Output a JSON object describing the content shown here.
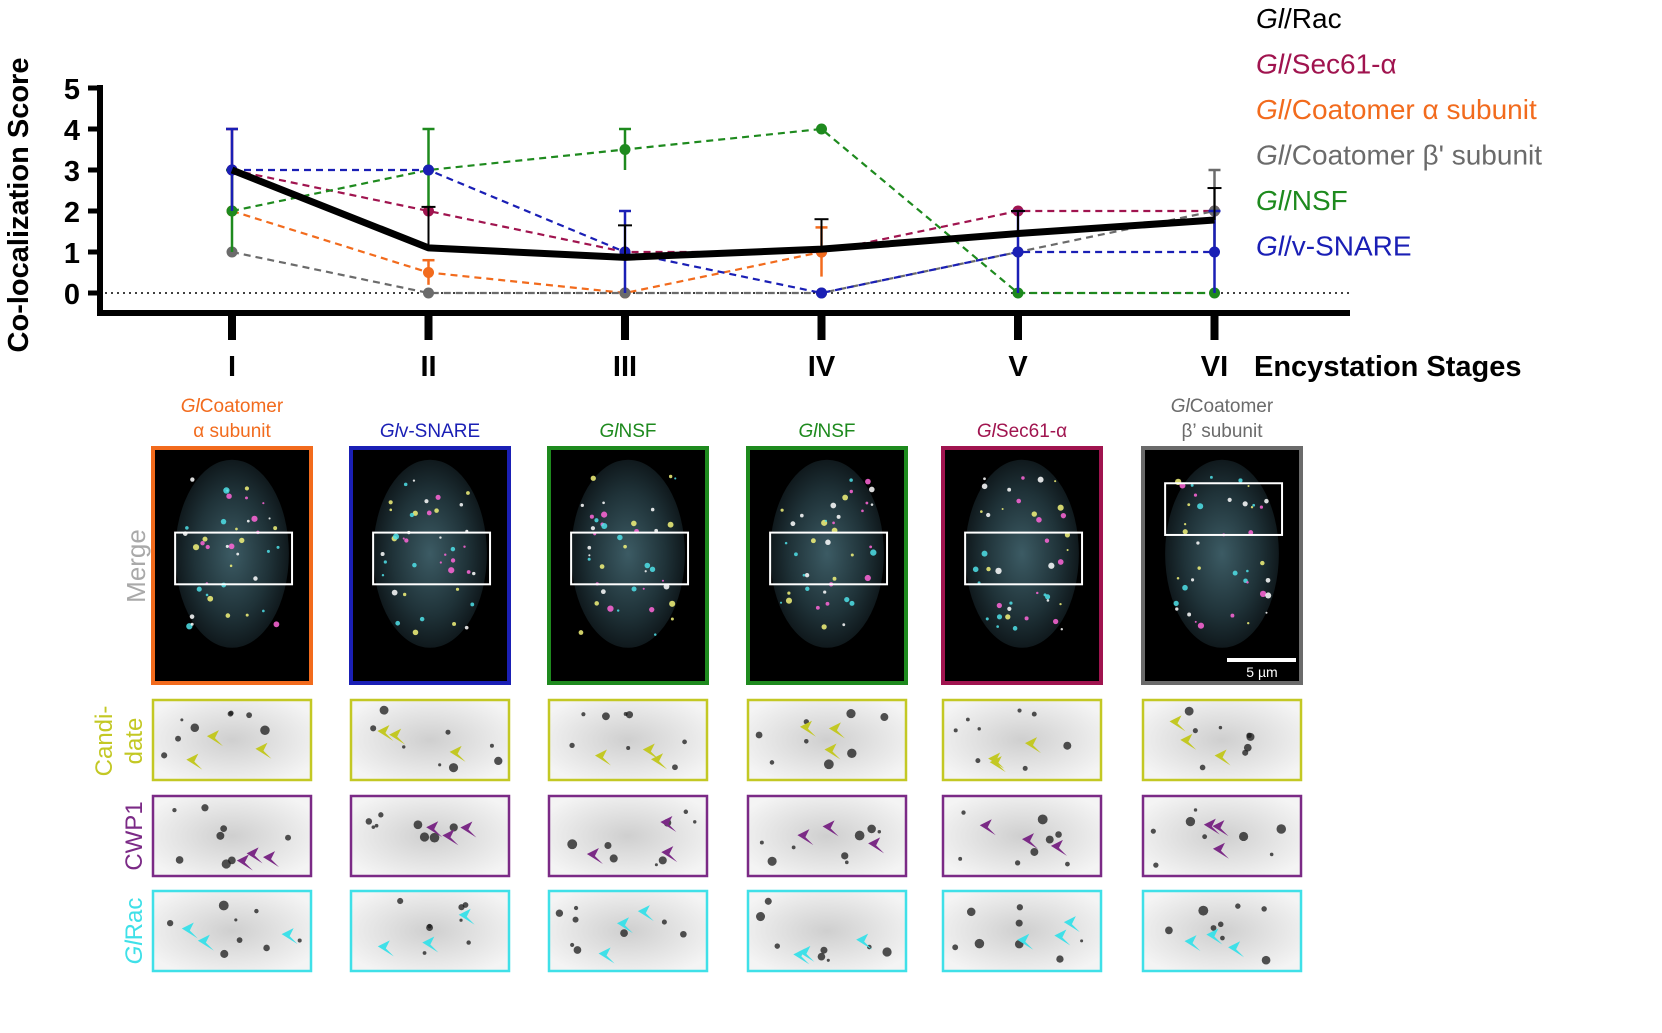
{
  "chart_data": {
    "type": "line",
    "title": "",
    "ylabel": "Co-localization Score",
    "xlabel": "Encystation Stages",
    "categories": [
      "I",
      "II",
      "III",
      "IV",
      "V",
      "VI"
    ],
    "yticks": [
      0,
      1,
      2,
      3,
      4,
      5
    ],
    "ylim": [
      0,
      5
    ],
    "legend_placement": "top-right",
    "reference_line": 0,
    "mean": {
      "values": [
        3.0,
        1.1,
        0.87,
        1.07,
        1.45,
        1.78
      ],
      "err": [
        null,
        1.0,
        0.78,
        0.73,
        0.55,
        0.78
      ],
      "color": "#000000"
    },
    "series": [
      {
        "name": "Rac",
        "prefix": "Gl",
        "color": "#000000",
        "values": [
          3,
          1.1,
          0.87,
          1.07,
          1.45,
          1.78
        ],
        "err": [
          0,
          0,
          0,
          0,
          0,
          0
        ]
      },
      {
        "name": "Sec61-α",
        "prefix": "Gl",
        "color": "#a0144f",
        "values": [
          3,
          2,
          1,
          1,
          2,
          2
        ],
        "err": [
          1,
          0,
          0,
          0,
          0,
          0
        ]
      },
      {
        "name": "Coatomer α subunit",
        "prefix": "Gl",
        "color": "#f26b1d",
        "values": [
          2,
          0.5,
          0,
          1,
          null,
          null
        ],
        "err": [
          0,
          0.3,
          0,
          0.6,
          0,
          0
        ]
      },
      {
        "name": "Coatomer β' subunit",
        "prefix": "Gl",
        "color": "#6b6b6b",
        "values": [
          1,
          0,
          0,
          0,
          1,
          2
        ],
        "err": [
          0,
          0,
          0,
          0,
          0,
          1
        ]
      },
      {
        "name": "NSF",
        "prefix": "Gl",
        "color": "#1e8a1e",
        "values": [
          2,
          3,
          3.5,
          4,
          0,
          0
        ],
        "err": [
          1,
          1,
          0.5,
          0,
          0,
          0
        ]
      },
      {
        "name": "v-SNARE",
        "prefix": "Gl",
        "color": "#1a1fb5",
        "values": [
          3,
          3,
          1,
          0,
          1,
          1
        ],
        "err": [
          1,
          0,
          1,
          0,
          1,
          1
        ]
      }
    ]
  },
  "panels": {
    "columns": [
      {
        "label_prefix": "Gl",
        "label_rest": "Coatomer",
        "label_line2": "α subunit",
        "color": "#f26b1d"
      },
      {
        "label_prefix": "Gl",
        "label_rest": "v-SNARE",
        "label_line2": "",
        "color": "#1a1fb5"
      },
      {
        "label_prefix": "Gl",
        "label_rest": "NSF",
        "label_line2": "",
        "color": "#1e8a1e"
      },
      {
        "label_prefix": "Gl",
        "label_rest": "NSF",
        "label_line2": "",
        "color": "#1e8a1e"
      },
      {
        "label_prefix": "Gl",
        "label_rest": "Sec61-α",
        "label_line2": "",
        "color": "#a0144f"
      },
      {
        "label_prefix": "Gl",
        "label_rest": "Coatomer",
        "label_line2": "β’ subunit",
        "color": "#6b6b6b"
      }
    ],
    "row_labels": {
      "merge": "Merge",
      "candidate_1": "Candi-",
      "candidate_2": "date",
      "cwp1": "CWP1",
      "rac_prefix": "Gl",
      "rac_rest": "Rac"
    },
    "row_colors": {
      "merge": "#a9a9a9",
      "candidate": "#c3c824",
      "cwp1": "#7b2a86",
      "rac": "#3fe0e8"
    },
    "scale_bar": "5 µm"
  }
}
